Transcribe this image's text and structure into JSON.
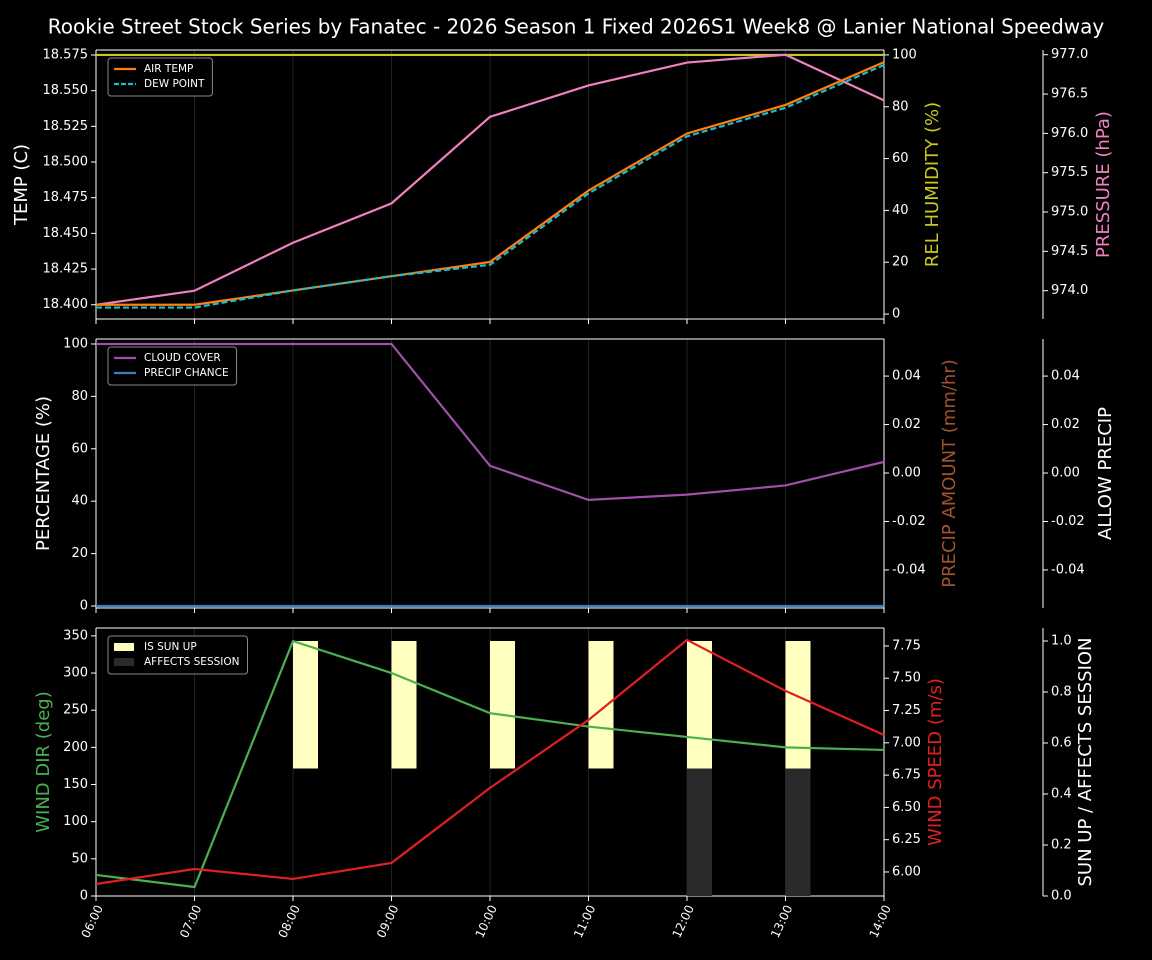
{
  "title": "Rookie Street Stock Series by Fanatec - 2026 Season 1 Fixed 2026S1 Week8 @ Lanier National Speedway",
  "categories": [
    "06:00",
    "07:00",
    "08:00",
    "09:00",
    "10:00",
    "11:00",
    "12:00",
    "13:00",
    "14:00"
  ],
  "chart_data": [
    {
      "type": "line",
      "legend": "upper left",
      "ylabel": "TEMP (C)",
      "ylim": [
        18.39,
        18.5785
      ],
      "yticks": [
        {
          "value": 18.4,
          "label": "18.400"
        },
        {
          "value": 18.425,
          "label": "18.425"
        },
        {
          "value": 18.45,
          "label": "18.450"
        },
        {
          "value": 18.475,
          "label": "18.475"
        },
        {
          "value": 18.5,
          "label": "18.500"
        },
        {
          "value": 18.525,
          "label": "18.525"
        },
        {
          "value": 18.55,
          "label": "18.550"
        },
        {
          "value": 18.575,
          "label": "18.575"
        }
      ],
      "y2label": "REL HUMIDITY (%)",
      "y2color": "#c8c81e",
      "y2lim": [
        -1.9,
        101.9
      ],
      "y2ticks": [
        0,
        20,
        40,
        60,
        80,
        100
      ],
      "y3label": "PRESSURE (hPa)",
      "y3color": "#f080c0",
      "y3lim": [
        973.64,
        977.06
      ],
      "y3ticks": [
        {
          "value": 974,
          "label": "974.0"
        },
        974.5,
        {
          "value": 975,
          "label": "975.0"
        },
        975.5,
        {
          "value": 976,
          "label": "976.0"
        },
        976.5,
        {
          "value": 977,
          "label": "977.0"
        }
      ],
      "series": [
        {
          "axis": "y2",
          "color": "#c8c81e",
          "values": [
            100,
            100,
            100,
            100,
            100,
            100,
            100,
            100,
            100
          ]
        },
        {
          "axis": "y3",
          "color": "#f080c0",
          "values": [
            973.82,
            974.0,
            974.61,
            975.11,
            976.21,
            976.61,
            976.9,
            977.0,
            976.42
          ]
        },
        {
          "name": "AIR TEMP",
          "axis": "y",
          "color": "#ff7f0e",
          "values": [
            18.4,
            18.4,
            18.41,
            18.42,
            18.43,
            18.48,
            18.52,
            18.54,
            18.57
          ]
        },
        {
          "name": "DEW POINT",
          "axis": "y",
          "color": "#17becf",
          "dashed": true,
          "values": [
            18.398,
            18.398,
            18.41,
            18.42,
            18.428,
            18.478,
            18.518,
            18.538,
            18.568
          ]
        }
      ]
    },
    {
      "type": "line",
      "legend": "upper left",
      "ylabel": "PERCENTAGE (%)",
      "ylim": [
        -0.77,
        101.9
      ],
      "yticks": [
        0,
        20,
        40,
        60,
        80,
        100
      ],
      "y2label": "PRECIP AMOUNT (mm/hr)",
      "y2color": "#a0522d",
      "y2lim": [
        -0.0557,
        0.0553
      ],
      "y2ticks": [
        -0.04,
        -0.02,
        {
          "value": 0,
          "label": "0.00"
        },
        0.02,
        0.04
      ],
      "y3label": "ALLOW PRECIP",
      "y3color": "#ffffff",
      "y3lim": [
        -0.0557,
        0.0553
      ],
      "y3ticks": [
        -0.04,
        -0.02,
        {
          "value": 0,
          "label": "0.00"
        },
        0.02,
        0.04
      ],
      "series": [
        {
          "name": "CLOUD COVER",
          "axis": "y",
          "color": "#a050a8",
          "values": [
            100,
            100,
            100,
            100,
            53.5,
            40.5,
            42.5,
            46,
            55
          ]
        },
        {
          "name": "PRECIP CHANCE",
          "axis": "y",
          "color": "#3c7fc0",
          "values": [
            0,
            0,
            0,
            0,
            0,
            0,
            0,
            0,
            0
          ]
        }
      ]
    },
    {
      "type": "line",
      "legend": "upper left",
      "ylabel": "WIND DIR (deg)",
      "ycolor": "#4caf50",
      "ylim": [
        0,
        360.6
      ],
      "yticks": [
        0,
        50,
        100,
        150,
        200,
        250,
        300,
        350
      ],
      "y2label": "WIND SPEED (m/s)",
      "y2color": "#e02020",
      "y2lim": [
        5.814,
        7.889
      ],
      "y2ticks": [
        {
          "value": 6,
          "label": "6.00"
        },
        6.25,
        {
          "value": 6.5,
          "label": "6.50"
        },
        6.75,
        {
          "value": 7,
          "label": "7.00"
        },
        7.25,
        {
          "value": 7.5,
          "label": "7.50"
        },
        7.75
      ],
      "y3label": "SUN UP / AFFECTS SESSION",
      "y3color": "#ffffff",
      "y3lim": [
        0,
        1.051
      ],
      "y3ticks": [
        {
          "value": 0,
          "label": "0.0"
        },
        0.2,
        0.4,
        0.6,
        0.8,
        {
          "value": 1,
          "label": "1.0"
        }
      ],
      "series": [
        {
          "name": "IS SUN UP",
          "kind": "bar",
          "axis": "y3",
          "color": "#ffffc0",
          "base": 0.5,
          "values": [
            null,
            null,
            0.5,
            0.5,
            0.5,
            0.5,
            0.5,
            0.5,
            null
          ]
        },
        {
          "name": "AFFECTS SESSION",
          "kind": "bar",
          "axis": "y3",
          "color": "#2a2a2a",
          "base": 0,
          "values": [
            null,
            null,
            null,
            null,
            null,
            null,
            0.5,
            0.5,
            null
          ]
        },
        {
          "axis": "y",
          "color": "#4caf50",
          "values": [
            28.3,
            12.1,
            343,
            300,
            246,
            228,
            214,
            200,
            196.5
          ]
        },
        {
          "axis": "y2",
          "color": "#e02020",
          "values": [
            5.907,
            6.023,
            5.946,
            6.07,
            6.651,
            7.177,
            7.797,
            7.402,
            7.061
          ]
        }
      ]
    }
  ]
}
